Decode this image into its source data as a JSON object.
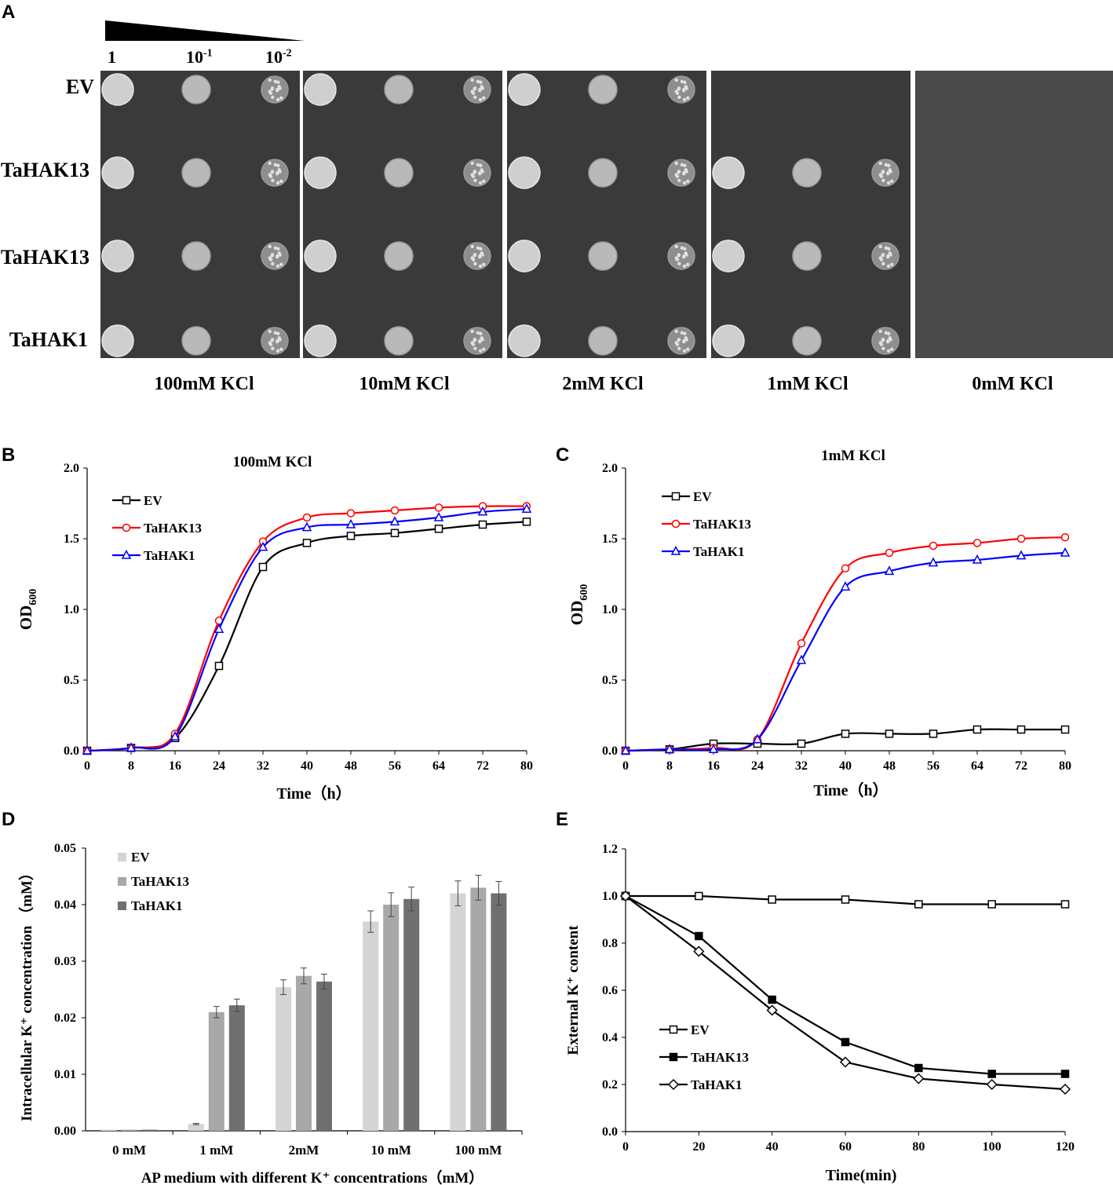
{
  "panel_a": {
    "letter": "A",
    "dilution_labels": [
      "1",
      "10",
      "10"
    ],
    "dilution_exponents": [
      "",
      "-1",
      "-2"
    ],
    "row_labels": [
      "EV",
      "TaHAK13",
      "TaHAK13",
      "TaHAK1"
    ],
    "conditions": [
      "100mM KCl",
      "10mM KCl",
      "2mM KCl",
      "1mM KCl",
      "0mM KCl"
    ],
    "growth": [
      [
        1,
        1,
        1,
        1
      ],
      [
        1,
        1,
        1,
        1
      ],
      [
        1,
        1,
        1,
        1
      ],
      [
        0,
        1,
        1,
        1
      ],
      [
        0,
        0,
        0,
        0
      ]
    ]
  },
  "chart_data": [
    {
      "panel": "B",
      "type": "line",
      "title": "100mM KCl",
      "xlabel": "Time（h）",
      "ylabel": "OD",
      "ylabel_sub": "600",
      "x": [
        0,
        8,
        16,
        24,
        32,
        40,
        48,
        56,
        64,
        72,
        80
      ],
      "xlim": [
        0,
        80
      ],
      "ylim": [
        0,
        2.0
      ],
      "yticks": [
        "0.0",
        "0.5",
        "1.0",
        "1.5",
        "2.0"
      ],
      "series": [
        {
          "name": "EV",
          "color": "#000000",
          "marker": "square",
          "values": [
            0.0,
            0.02,
            0.09,
            0.6,
            1.3,
            1.47,
            1.52,
            1.54,
            1.57,
            1.6,
            1.62
          ]
        },
        {
          "name": "TaHAK13",
          "color": "#ff0000",
          "marker": "circle",
          "values": [
            0.0,
            0.02,
            0.12,
            0.92,
            1.48,
            1.65,
            1.68,
            1.7,
            1.72,
            1.73,
            1.73
          ]
        },
        {
          "name": "TaHAK1",
          "color": "#0000ff",
          "marker": "triangle",
          "values": [
            0.0,
            0.02,
            0.1,
            0.86,
            1.44,
            1.58,
            1.6,
            1.62,
            1.65,
            1.69,
            1.71
          ]
        }
      ],
      "legend": "top-left"
    },
    {
      "panel": "C",
      "type": "line",
      "title": "1mM   KCl",
      "xlabel": "Time（h）",
      "ylabel": "OD",
      "ylabel_sub": "600",
      "x": [
        0,
        8,
        16,
        24,
        32,
        40,
        48,
        56,
        64,
        72,
        80
      ],
      "xlim": [
        0,
        80
      ],
      "ylim": [
        0,
        2.0
      ],
      "yticks": [
        "0.0",
        "0.5",
        "1.0",
        "1.5",
        "2.0"
      ],
      "series": [
        {
          "name": "EV",
          "color": "#000000",
          "marker": "square",
          "values": [
            0.0,
            0.01,
            0.05,
            0.05,
            0.05,
            0.12,
            0.12,
            0.12,
            0.15,
            0.15,
            0.15
          ]
        },
        {
          "name": "TaHAK13",
          "color": "#ff0000",
          "marker": "circle",
          "values": [
            0.0,
            0.01,
            0.02,
            0.08,
            0.76,
            1.29,
            1.4,
            1.45,
            1.47,
            1.5,
            1.51
          ]
        },
        {
          "name": "TaHAK1",
          "color": "#0000ff",
          "marker": "triangle",
          "values": [
            0.0,
            0.01,
            0.01,
            0.08,
            0.64,
            1.16,
            1.27,
            1.33,
            1.35,
            1.38,
            1.4
          ]
        }
      ],
      "legend": "top-left"
    },
    {
      "panel": "D",
      "type": "bar",
      "xlabel": "AP medium with different K⁺ concentrations（mM）",
      "ylabel": "Intracellular K⁺ concentration （mM）",
      "categories": [
        "0 mM",
        "1 mM",
        "2mM",
        "10 mM",
        "100 mM"
      ],
      "ylim": [
        0,
        0.05
      ],
      "yticks": [
        "0.00",
        "0.01",
        "0.02",
        "0.03",
        "0.04",
        "0.05"
      ],
      "series": [
        {
          "name": "EV",
          "color": "#d4d4d4",
          "values": [
            0.0002,
            0.0012,
            0.0254,
            0.037,
            0.042
          ],
          "errors": [
            0.0,
            0.0001,
            0.0013,
            0.0019,
            0.0022
          ]
        },
        {
          "name": "TaHAK13",
          "color": "#a8a8a8",
          "values": [
            0.0002,
            0.021,
            0.0274,
            0.04,
            0.043
          ],
          "errors": [
            0.0,
            0.001,
            0.0014,
            0.0021,
            0.0022
          ]
        },
        {
          "name": "TaHAK1",
          "color": "#707070",
          "values": [
            0.0002,
            0.0222,
            0.0264,
            0.041,
            0.042
          ],
          "errors": [
            0.0,
            0.0011,
            0.0013,
            0.0021,
            0.0021
          ]
        }
      ],
      "legend": "top-left"
    },
    {
      "panel": "E",
      "type": "line",
      "xlabel": "Time(min)",
      "ylabel": "External K⁺ content",
      "x": [
        0,
        20,
        40,
        60,
        80,
        100,
        120
      ],
      "xlim": [
        0,
        120
      ],
      "ylim": [
        0,
        1.2
      ],
      "yticks": [
        "0.0",
        "0.2",
        "0.4",
        "0.6",
        "0.8",
        "1.0",
        "1.2"
      ],
      "series": [
        {
          "name": "EV",
          "color": "#000000",
          "marker": "open-square",
          "values": [
            1.0,
            1.0,
            0.985,
            0.985,
            0.965,
            0.965,
            0.965
          ]
        },
        {
          "name": "TaHAK13",
          "color": "#000000",
          "marker": "filled-square",
          "values": [
            1.0,
            0.83,
            0.56,
            0.38,
            0.27,
            0.245,
            0.245
          ]
        },
        {
          "name": "TaHAK1",
          "color": "#000000",
          "marker": "open-diamond",
          "values": [
            1.0,
            0.765,
            0.515,
            0.295,
            0.225,
            0.2,
            0.18
          ]
        }
      ],
      "legend": "bottom-left"
    }
  ]
}
